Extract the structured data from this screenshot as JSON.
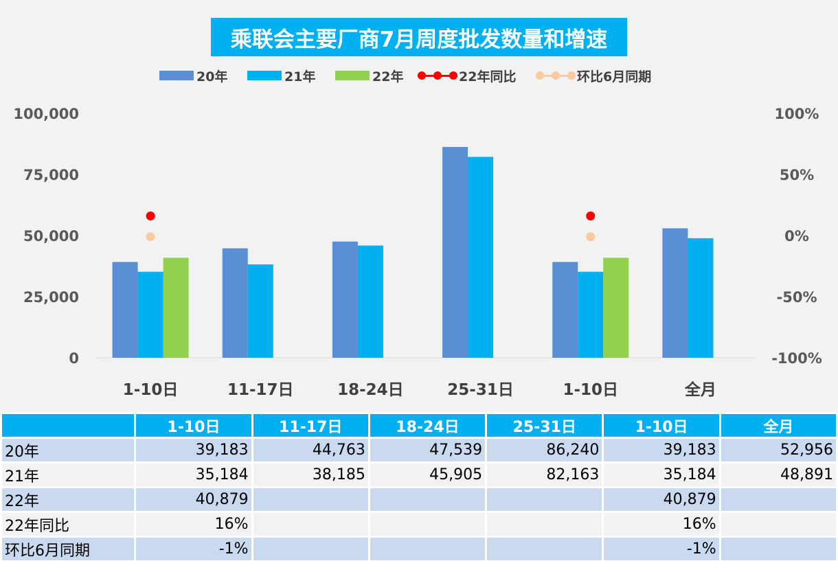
{
  "title": "乘联会主要厂商7月周度批发数量和增速",
  "colors": {
    "series_20": "#5b8fd4",
    "series_21": "#00b0f0",
    "series_22": "#92d050",
    "yoy": "#ff0000",
    "mom": "#f8cba0",
    "title_bg": "#00b0f0",
    "table_header": "#00b0f0"
  },
  "legend": [
    {
      "label": "20年",
      "kind": "bar",
      "color": "#5b8fd4"
    },
    {
      "label": "21年",
      "kind": "bar",
      "color": "#00b0f0"
    },
    {
      "label": "22年",
      "kind": "bar",
      "color": "#92d050"
    },
    {
      "label": "22年同比",
      "kind": "line",
      "color": "#ff0000"
    },
    {
      "label": "环比6月同期",
      "kind": "line",
      "color": "#f8cba0"
    }
  ],
  "chart_data": {
    "type": "bar",
    "title": "乘联会主要厂商7月周度批发数量和增速",
    "categories": [
      "1-10日",
      "11-17日",
      "18-24日",
      "25-31日",
      "1-10日",
      "全月"
    ],
    "series": [
      {
        "name": "20年",
        "type": "bar",
        "axis": "left",
        "values": [
          39183,
          44763,
          47539,
          86240,
          39183,
          52956
        ]
      },
      {
        "name": "21年",
        "type": "bar",
        "axis": "left",
        "values": [
          35184,
          38185,
          45905,
          82163,
          35184,
          48891
        ]
      },
      {
        "name": "22年",
        "type": "bar",
        "axis": "left",
        "values": [
          40879,
          null,
          null,
          null,
          40879,
          null
        ]
      },
      {
        "name": "22年同比",
        "type": "line",
        "axis": "right",
        "values": [
          0.16,
          null,
          null,
          null,
          0.16,
          null
        ]
      },
      {
        "name": "环比6月同期",
        "type": "line",
        "axis": "right",
        "values": [
          -0.01,
          null,
          null,
          null,
          -0.01,
          null
        ]
      }
    ],
    "y_left": {
      "min": 0,
      "max": 100000,
      "ticks": [
        "0",
        "25,000",
        "50,000",
        "75,000",
        "100,000"
      ],
      "tick_values": [
        0,
        25000,
        50000,
        75000,
        100000
      ]
    },
    "y_right": {
      "min": -1,
      "max": 1,
      "ticks": [
        "-100%",
        "-50%",
        "0%",
        "50%",
        "100%"
      ],
      "tick_values": [
        -1,
        -0.5,
        0,
        0.5,
        1
      ]
    },
    "grid": false,
    "legend_position": "top"
  },
  "table": {
    "headers": [
      "",
      "1-10日",
      "11-17日",
      "18-24日",
      "25-31日",
      "1-10日",
      "全月"
    ],
    "rows": [
      {
        "label": "20年",
        "cells": [
          "39,183",
          "44,763",
          "47,539",
          "86,240",
          "39,183",
          "52,956"
        ]
      },
      {
        "label": "21年",
        "cells": [
          "35,184",
          "38,185",
          "45,905",
          "82,163",
          "35,184",
          "48,891"
        ]
      },
      {
        "label": "22年",
        "cells": [
          "40,879",
          "",
          "",
          "",
          "40,879",
          ""
        ]
      },
      {
        "label": "22年同比",
        "cells": [
          "16%",
          "",
          "",
          "",
          "16%",
          ""
        ]
      },
      {
        "label": "环比6月同期",
        "cells": [
          "-1%",
          "",
          "",
          "",
          "-1%",
          ""
        ]
      }
    ]
  }
}
